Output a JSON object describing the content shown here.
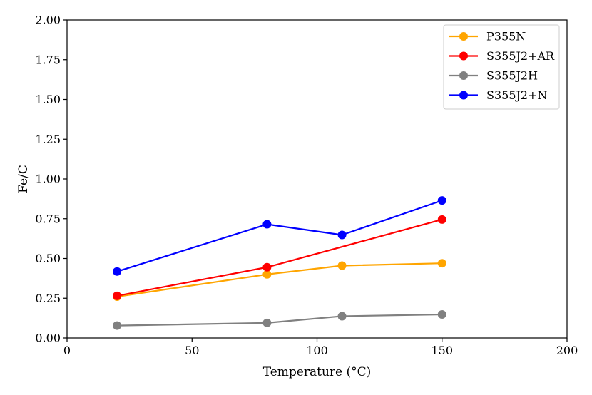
{
  "chart_data": {
    "type": "line",
    "title": "",
    "xlabel": "Temperature (°C)",
    "ylabel": "Fe/C",
    "xlim": [
      0,
      200
    ],
    "ylim": [
      0,
      2
    ],
    "xticks": [
      0,
      50,
      100,
      150,
      200
    ],
    "xtick_labels": [
      "0",
      "50",
      "100",
      "150",
      "200"
    ],
    "yticks": [
      0,
      0.25,
      0.5,
      0.75,
      1,
      1.25,
      1.5,
      1.75,
      2
    ],
    "ytick_labels": [
      "0.00",
      "0.25",
      "0.50",
      "0.75",
      "1.00",
      "1.25",
      "1.50",
      "1.75",
      "2.00"
    ],
    "grid": false,
    "legend_position": "top-right",
    "series": [
      {
        "name": "P355N",
        "color": "#FFA500",
        "x": [
          20,
          80,
          110,
          150
        ],
        "y": [
          0.26,
          0.4,
          0.455,
          0.47
        ]
      },
      {
        "name": "S355J2+AR",
        "color": "#FF0000",
        "x": [
          20,
          80,
          150
        ],
        "y": [
          0.265,
          0.445,
          0.745
        ]
      },
      {
        "name": "S355J2H",
        "color": "#808080",
        "x": [
          20,
          80,
          110,
          150
        ],
        "y": [
          0.078,
          0.095,
          0.137,
          0.148
        ]
      },
      {
        "name": "S355J2+N",
        "color": "#0000FF",
        "x": [
          20,
          80,
          110,
          150
        ],
        "y": [
          0.418,
          0.715,
          0.648,
          0.865
        ]
      }
    ]
  }
}
